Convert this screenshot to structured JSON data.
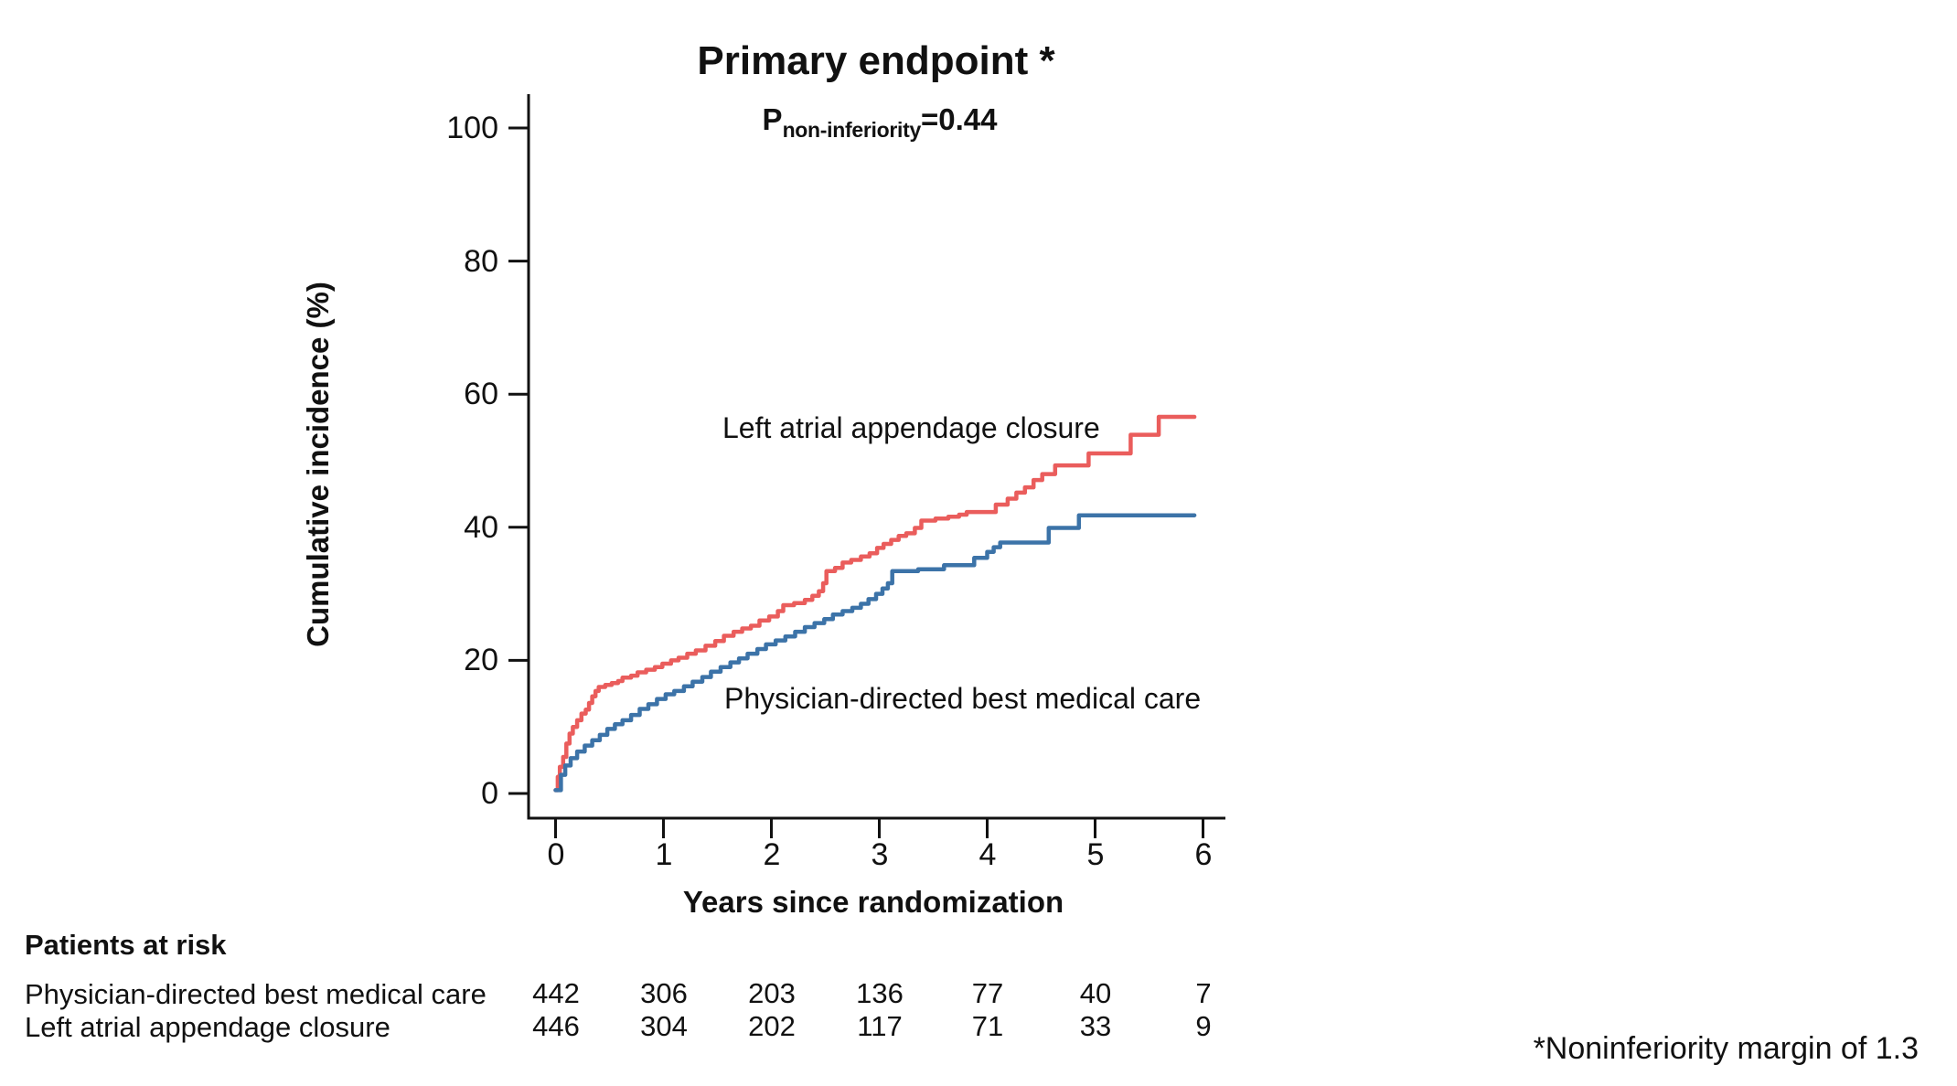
{
  "figure": {
    "title": "Primary endpoint *",
    "p_label": "P",
    "p_sub": "non-inferiority",
    "p_value": "=0.44",
    "footnote": "*Noninferiority margin of 1.3"
  },
  "chart_data": {
    "type": "line",
    "subtype": "step-cumulative-incidence",
    "title": "Primary endpoint *",
    "annotation": "P non-inferiority = 0.44",
    "xlabel": "Years since randomization",
    "ylabel": "Cumulative incidence (%)",
    "xlim": [
      0,
      6.2
    ],
    "ylim": [
      0,
      100
    ],
    "xticks": [
      0,
      1,
      2,
      3,
      4,
      5,
      6
    ],
    "yticks": [
      0,
      20,
      40,
      60,
      80,
      100
    ],
    "grid": false,
    "legend_position": "inline-labels",
    "axis_color": "#111111",
    "series": [
      {
        "name": "Left atrial appendage closure",
        "color": "#EA5D5C",
        "end_x": 5.92,
        "final_value": 56.6,
        "points": [
          [
            0,
            0.5
          ],
          [
            0.02,
            2.5
          ],
          [
            0.04,
            4.0
          ],
          [
            0.07,
            5.5
          ],
          [
            0.1,
            7.5
          ],
          [
            0.13,
            9.0
          ],
          [
            0.16,
            10.0
          ],
          [
            0.2,
            11.0
          ],
          [
            0.24,
            12.0
          ],
          [
            0.28,
            12.6
          ],
          [
            0.31,
            13.6
          ],
          [
            0.34,
            14.6
          ],
          [
            0.37,
            15.4
          ],
          [
            0.4,
            16.0
          ],
          [
            0.46,
            16.3
          ],
          [
            0.52,
            16.6
          ],
          [
            0.58,
            16.9
          ],
          [
            0.62,
            17.4
          ],
          [
            0.7,
            17.7
          ],
          [
            0.76,
            18.2
          ],
          [
            0.84,
            18.6
          ],
          [
            0.92,
            19.0
          ],
          [
            0.99,
            19.5
          ],
          [
            1.07,
            20.0
          ],
          [
            1.14,
            20.4
          ],
          [
            1.22,
            21.0
          ],
          [
            1.3,
            21.5
          ],
          [
            1.39,
            22.2
          ],
          [
            1.48,
            22.9
          ],
          [
            1.56,
            23.7
          ],
          [
            1.65,
            24.3
          ],
          [
            1.73,
            24.8
          ],
          [
            1.81,
            25.2
          ],
          [
            1.89,
            26.0
          ],
          [
            1.98,
            26.6
          ],
          [
            2.06,
            27.4
          ],
          [
            2.11,
            28.3
          ],
          [
            2.21,
            28.6
          ],
          [
            2.31,
            29.1
          ],
          [
            2.38,
            29.7
          ],
          [
            2.44,
            30.4
          ],
          [
            2.48,
            31.6
          ],
          [
            2.51,
            33.4
          ],
          [
            2.59,
            33.9
          ],
          [
            2.66,
            34.7
          ],
          [
            2.74,
            35.1
          ],
          [
            2.83,
            35.6
          ],
          [
            2.91,
            36.1
          ],
          [
            2.98,
            36.9
          ],
          [
            3.04,
            37.5
          ],
          [
            3.11,
            38.1
          ],
          [
            3.18,
            38.7
          ],
          [
            3.25,
            39.1
          ],
          [
            3.33,
            39.9
          ],
          [
            3.39,
            41.0
          ],
          [
            3.52,
            41.3
          ],
          [
            3.64,
            41.6
          ],
          [
            3.74,
            41.9
          ],
          [
            3.81,
            42.3
          ],
          [
            4.08,
            43.4
          ],
          [
            4.19,
            44.3
          ],
          [
            4.27,
            45.2
          ],
          [
            4.35,
            46.0
          ],
          [
            4.43,
            47.1
          ],
          [
            4.51,
            48.0
          ],
          [
            4.63,
            49.3
          ],
          [
            4.94,
            51.1
          ],
          [
            5.33,
            53.9
          ],
          [
            5.59,
            56.6
          ]
        ]
      },
      {
        "name": "Physician-directed best medical care",
        "color": "#3C73A8",
        "end_x": 5.92,
        "final_value": 41.8,
        "points": [
          [
            0,
            0.5
          ],
          [
            0.05,
            2.8
          ],
          [
            0.09,
            4.2
          ],
          [
            0.14,
            5.3
          ],
          [
            0.2,
            6.3
          ],
          [
            0.27,
            7.2
          ],
          [
            0.34,
            8.0
          ],
          [
            0.41,
            8.8
          ],
          [
            0.48,
            9.7
          ],
          [
            0.55,
            10.4
          ],
          [
            0.62,
            11.0
          ],
          [
            0.7,
            11.8
          ],
          [
            0.78,
            12.7
          ],
          [
            0.86,
            13.4
          ],
          [
            0.94,
            14.2
          ],
          [
            1.02,
            14.9
          ],
          [
            1.1,
            15.4
          ],
          [
            1.19,
            16.1
          ],
          [
            1.27,
            16.8
          ],
          [
            1.36,
            17.5
          ],
          [
            1.44,
            18.3
          ],
          [
            1.53,
            19.0
          ],
          [
            1.62,
            19.7
          ],
          [
            1.7,
            20.3
          ],
          [
            1.78,
            21.0
          ],
          [
            1.87,
            21.7
          ],
          [
            1.95,
            22.4
          ],
          [
            2.04,
            23.0
          ],
          [
            2.13,
            23.6
          ],
          [
            2.22,
            24.3
          ],
          [
            2.31,
            25.0
          ],
          [
            2.4,
            25.6
          ],
          [
            2.49,
            26.2
          ],
          [
            2.57,
            26.9
          ],
          [
            2.66,
            27.4
          ],
          [
            2.75,
            27.9
          ],
          [
            2.83,
            28.5
          ],
          [
            2.9,
            29.2
          ],
          [
            2.97,
            30.0
          ],
          [
            3.03,
            30.8
          ],
          [
            3.08,
            31.6
          ],
          [
            3.12,
            33.4
          ],
          [
            3.36,
            33.7
          ],
          [
            3.6,
            34.3
          ],
          [
            3.88,
            35.4
          ],
          [
            4.0,
            36.3
          ],
          [
            4.06,
            37.0
          ],
          [
            4.12,
            37.7
          ],
          [
            4.57,
            39.9
          ],
          [
            4.85,
            41.8
          ]
        ]
      }
    ]
  },
  "risk_table": {
    "header": "Patients at risk",
    "time_points": [
      0,
      1,
      2,
      3,
      4,
      5,
      6
    ],
    "rows": [
      {
        "label": "Physician-directed best medical care",
        "values": [
          "442",
          "306",
          "203",
          "136",
          "77",
          "40",
          "7"
        ]
      },
      {
        "label": "Left atrial appendage closure",
        "values": [
          "446",
          "304",
          "202",
          "117",
          "71",
          "33",
          "9"
        ]
      }
    ]
  }
}
